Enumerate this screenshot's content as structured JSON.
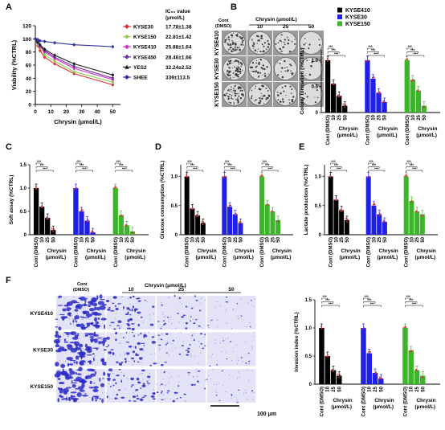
{
  "colors": {
    "KYSE410": "#000000",
    "KYSE30": "#1f1fe6",
    "KYSE150": "#3db52a",
    "marker": "#e03030",
    "well_bg": "#dcdcdc",
    "colony": "#3a3a3a",
    "invasion_bg": "#e4e2f6",
    "invasion_cells": "#2a2ac8"
  },
  "panel_labels": {
    "A": "A",
    "B": "B",
    "C": "C",
    "D": "D",
    "E": "E",
    "F": "F"
  },
  "common": {
    "cell_lines": [
      "KYSE410",
      "KYSE30",
      "KYSE150"
    ],
    "bar_categories": [
      "Cont (DMSO)",
      "10",
      "25",
      "50"
    ],
    "x_group_label": "Chrysin (μmol/L)",
    "x_group_label_line1": "Chrysin",
    "x_group_label_line2": "(μmol/L)",
    "cont_label": "Cont (DMSO)",
    "sig": "***"
  },
  "panelA": {
    "ic50_header_line1": "IC₅₀ value",
    "ic50_header_line2": "(μmol/L)",
    "legend": [
      {
        "name": "KYSE30",
        "ic50": "17.78±1.38",
        "color": "#e03030",
        "marker": "diamond"
      },
      {
        "name": "KYSE150",
        "ic50": "22.81±1.42",
        "color": "#8fd14f",
        "marker": "circle"
      },
      {
        "name": "KYSE410",
        "ic50": "25.88±1.64",
        "color": "#d030d0",
        "marker": "diamond"
      },
      {
        "name": "KYSE450",
        "ic50": "28.46±1.66",
        "color": "#7030a0",
        "marker": "diamond"
      },
      {
        "name": "YES2",
        "ic50": "32.24±2.52",
        "color": "#202020",
        "marker": "triangle"
      },
      {
        "name": "SHEE",
        "ic50": "339±113.5",
        "color": "#3030a0",
        "marker": "diamond"
      }
    ]
  },
  "panelB": {
    "title": "Chrysin (μmol/L)",
    "cont_line1": "Cont",
    "cont_line2": "(DMSO)",
    "dose_labels": [
      "10",
      "25",
      "50"
    ],
    "row_labels": [
      "KYSE410",
      "KYSE30",
      "KYSE150"
    ]
  },
  "panelF": {
    "title": "Chrysin (μmol/L)",
    "cont_line1": "Cont",
    "cont_line2": "(DMSO)",
    "dose_labels": [
      "10",
      "25",
      "50"
    ],
    "row_labels": [
      "KYSE410",
      "KYSE30",
      "KYSE150"
    ],
    "scale_bar": "100 μm"
  },
  "chart_data": [
    {
      "id": "A",
      "type": "line",
      "title": "",
      "xlabel": "Chrysin (μmol/L)",
      "ylabel": "Viability (%CTRL)",
      "xlim": [
        0,
        55
      ],
      "ylim": [
        0,
        120
      ],
      "xticks": [
        0,
        10,
        20,
        30,
        40,
        50
      ],
      "yticks": [
        0,
        20,
        40,
        60,
        80,
        100,
        120
      ],
      "x": [
        0,
        1.5,
        3,
        6,
        12.5,
        25,
        50
      ],
      "series": [
        {
          "name": "KYSE30",
          "values": [
            100,
            90,
            82,
            72,
            62,
            47,
            30
          ]
        },
        {
          "name": "KYSE150",
          "values": [
            100,
            92,
            86,
            76,
            66,
            50,
            34
          ]
        },
        {
          "name": "KYSE410",
          "values": [
            100,
            94,
            88,
            80,
            70,
            55,
            38
          ]
        },
        {
          "name": "KYSE450",
          "values": [
            100,
            96,
            90,
            82,
            72,
            58,
            40
          ]
        },
        {
          "name": "YES2",
          "values": [
            100,
            95,
            91,
            84,
            75,
            62,
            45
          ]
        },
        {
          "name": "SHEE",
          "values": [
            100,
            99,
            97,
            96,
            94,
            91,
            88
          ]
        }
      ]
    },
    {
      "id": "B",
      "type": "bar",
      "title": "",
      "xlabel": "Chrysin (μmol/L)",
      "ylabel": "Colony formation (%CTRL)",
      "ylim": [
        0,
        1.2
      ],
      "yticks": [
        0,
        0.5,
        1.0
      ],
      "legend_placement": "top-right",
      "categories": [
        "Cont (DMSO)",
        "10",
        "25",
        "50"
      ],
      "series": [
        {
          "name": "KYSE410",
          "values": [
            1.0,
            0.55,
            0.32,
            0.13
          ]
        },
        {
          "name": "KYSE30",
          "values": [
            1.0,
            0.65,
            0.38,
            0.2
          ]
        },
        {
          "name": "KYSE150",
          "values": [
            1.0,
            0.63,
            0.42,
            0.13
          ]
        }
      ]
    },
    {
      "id": "C",
      "type": "bar",
      "title": "",
      "xlabel": "Chrysin (μmol/L)",
      "ylabel": "Soft assay (%CTRL)",
      "ylim": [
        0,
        1.5
      ],
      "yticks": [
        0,
        0.5,
        1.0,
        1.5
      ],
      "categories": [
        "Cont (DMSO)",
        "10",
        "25",
        "50"
      ],
      "series": [
        {
          "name": "KYSE410",
          "values": [
            1.0,
            0.6,
            0.36,
            0.1
          ]
        },
        {
          "name": "KYSE30",
          "values": [
            1.0,
            0.5,
            0.3,
            0.05
          ]
        },
        {
          "name": "KYSE150",
          "values": [
            1.0,
            0.42,
            0.2,
            0.07
          ]
        }
      ]
    },
    {
      "id": "D",
      "type": "bar",
      "title": "",
      "xlabel": "Chrysin (μmol/L)",
      "ylabel": "Glucose consumption (%CTRL)",
      "ylim": [
        0,
        1.2
      ],
      "yticks": [
        0,
        0.5,
        1.0
      ],
      "categories": [
        "Cont (DMSO)",
        "10",
        "25",
        "50"
      ],
      "series": [
        {
          "name": "KYSE410",
          "values": [
            1.0,
            0.45,
            0.33,
            0.2
          ]
        },
        {
          "name": "KYSE30",
          "values": [
            1.0,
            0.48,
            0.35,
            0.2
          ]
        },
        {
          "name": "KYSE150",
          "values": [
            1.0,
            0.52,
            0.4,
            0.25
          ]
        }
      ]
    },
    {
      "id": "E",
      "type": "bar",
      "title": "",
      "xlabel": "Chrysin (μmol/L)",
      "ylabel": "Lactate production (%CTRL)",
      "ylim": [
        0,
        1.2
      ],
      "yticks": [
        0,
        0.5,
        1.0
      ],
      "categories": [
        "Cont (DMSO)",
        "10",
        "25",
        "50"
      ],
      "series": [
        {
          "name": "KYSE410",
          "values": [
            1.0,
            0.6,
            0.42,
            0.25
          ]
        },
        {
          "name": "KYSE30",
          "values": [
            1.0,
            0.5,
            0.35,
            0.22
          ]
        },
        {
          "name": "KYSE150",
          "values": [
            1.0,
            0.58,
            0.4,
            0.35
          ]
        }
      ]
    },
    {
      "id": "F",
      "type": "bar",
      "title": "",
      "xlabel": "Chrysin (μmol/L)",
      "ylabel": "Invasion index (%CTRL)",
      "ylim": [
        0,
        1.5
      ],
      "yticks": [
        0,
        0.5,
        1.0,
        1.5
      ],
      "categories": [
        "Cont (DMSO)",
        "10",
        "25",
        "50"
      ],
      "series": [
        {
          "name": "KYSE410",
          "values": [
            1.0,
            0.5,
            0.25,
            0.15
          ]
        },
        {
          "name": "KYSE30",
          "values": [
            1.0,
            0.55,
            0.2,
            0.1
          ]
        },
        {
          "name": "KYSE150",
          "values": [
            1.0,
            0.6,
            0.25,
            0.15
          ]
        }
      ]
    }
  ]
}
